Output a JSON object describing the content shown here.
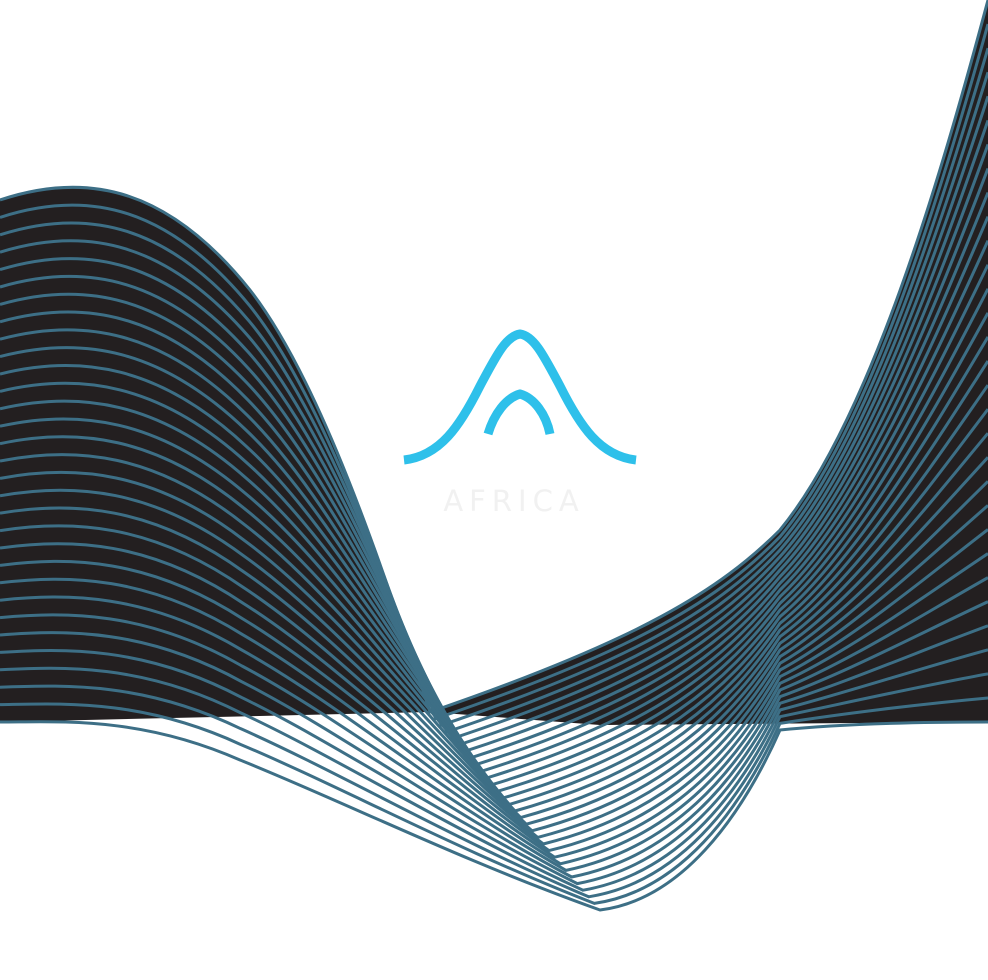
{
  "artwork": {
    "name": "wave-lines",
    "colors": {
      "background": "#ffffff",
      "wave_fill": "#231f20",
      "wave_lines": "#3d6f86"
    }
  },
  "logo": {
    "icon": "double-arch-icon",
    "text": "AFRICA",
    "colors": {
      "mark": "#2ec0ea",
      "text": "#f1f1f1"
    }
  }
}
